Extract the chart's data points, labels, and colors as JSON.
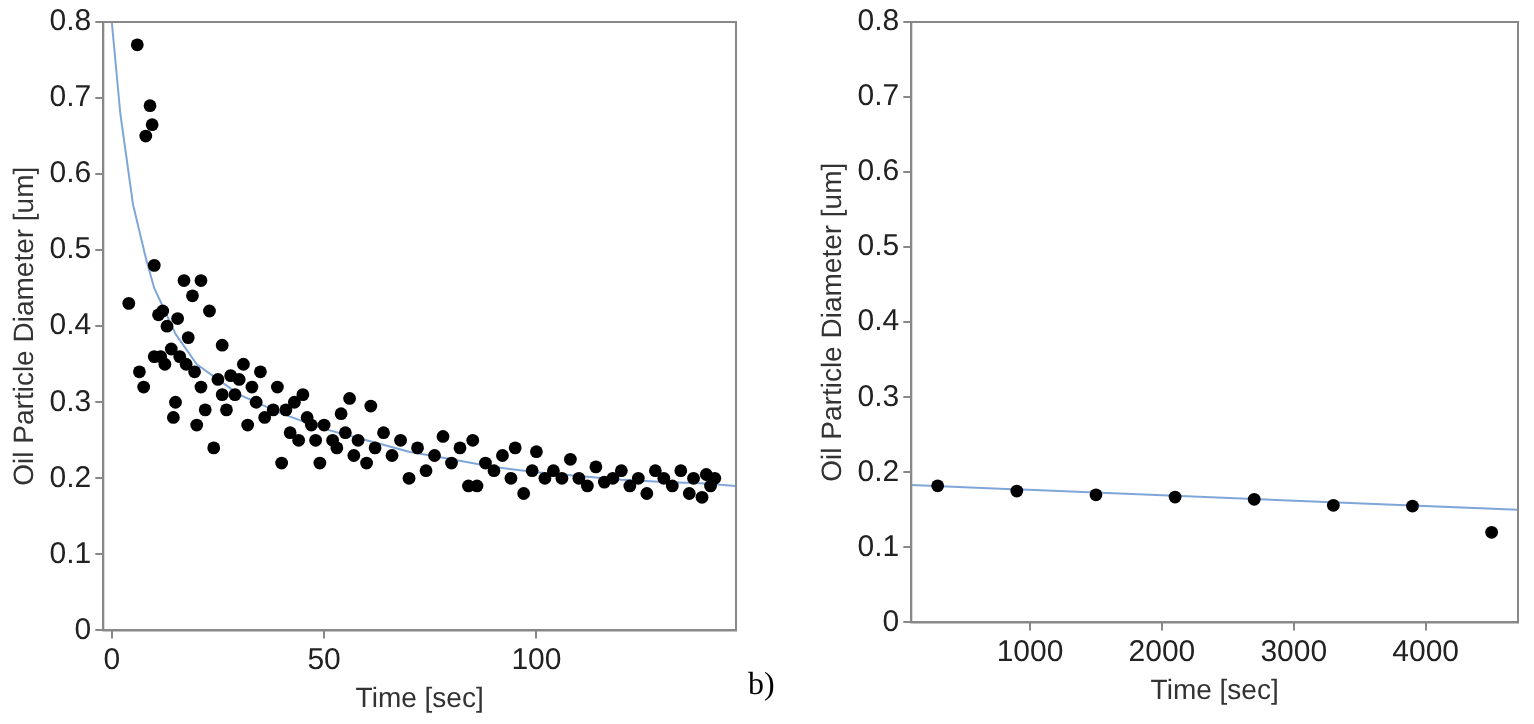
{
  "chart_data": [
    {
      "type": "scatter",
      "xlabel": "Time [sec]",
      "ylabel": "Oil Particle Diameter [um]",
      "xlim": [
        -2,
        147
      ],
      "xticks": [
        0,
        50,
        100
      ],
      "ylim": [
        0,
        0.8
      ],
      "yticks": [
        0,
        0.1,
        0.2,
        0.3,
        0.4,
        0.5,
        0.6,
        0.7,
        0.8
      ],
      "grid": false,
      "legend": false,
      "series": [
        {
          "marker": "circle",
          "color": "#000000",
          "x": [
            4,
            6,
            6.5,
            7.5,
            8,
            9,
            9.5,
            10,
            10,
            11,
            11.5,
            12,
            12.5,
            13,
            14,
            14.5,
            15,
            15.5,
            16,
            17,
            17.5,
            18,
            19,
            19.5,
            20,
            21,
            21,
            22,
            23,
            24,
            25,
            26,
            26,
            27,
            28,
            29,
            30,
            31,
            32,
            33,
            34,
            35,
            36,
            38,
            39,
            40,
            41,
            42,
            43,
            44,
            45,
            46,
            47,
            48,
            49,
            50,
            52,
            53,
            54,
            55,
            56,
            57,
            58,
            60,
            61,
            62,
            64,
            66,
            68,
            70,
            72,
            74,
            76,
            78,
            80,
            82,
            84,
            85,
            86,
            88,
            90,
            92,
            94,
            95,
            97,
            99,
            100,
            102,
            104,
            106,
            108,
            110,
            112,
            114,
            116,
            118,
            120,
            122,
            124,
            126,
            128,
            130,
            132,
            134,
            136,
            137,
            139,
            140,
            141,
            142
          ],
          "values": [
            0.43,
            0.77,
            0.34,
            0.32,
            0.65,
            0.69,
            0.665,
            0.48,
            0.36,
            0.415,
            0.36,
            0.42,
            0.35,
            0.4,
            0.37,
            0.28,
            0.3,
            0.41,
            0.36,
            0.46,
            0.35,
            0.385,
            0.44,
            0.34,
            0.27,
            0.46,
            0.32,
            0.29,
            0.42,
            0.24,
            0.33,
            0.375,
            0.31,
            0.29,
            0.335,
            0.31,
            0.33,
            0.35,
            0.27,
            0.32,
            0.3,
            0.34,
            0.28,
            0.29,
            0.32,
            0.22,
            0.29,
            0.26,
            0.3,
            0.25,
            0.31,
            0.28,
            0.27,
            0.25,
            0.22,
            0.27,
            0.25,
            0.24,
            0.285,
            0.26,
            0.305,
            0.23,
            0.25,
            0.22,
            0.295,
            0.24,
            0.26,
            0.23,
            0.25,
            0.2,
            0.24,
            0.21,
            0.23,
            0.255,
            0.22,
            0.24,
            0.19,
            0.25,
            0.19,
            0.22,
            0.21,
            0.23,
            0.2,
            0.24,
            0.18,
            0.21,
            0.235,
            0.2,
            0.21,
            0.2,
            0.225,
            0.2,
            0.19,
            0.215,
            0.195,
            0.2,
            0.21,
            0.19,
            0.2,
            0.18,
            0.21,
            0.2,
            0.19,
            0.21,
            0.18,
            0.2,
            0.175,
            0.205,
            0.19,
            0.2
          ]
        },
        {
          "type": "line",
          "marker": "none",
          "line_style": "solid",
          "color": "#7ea6d8",
          "x": [
            0,
            2,
            5,
            8,
            10,
            15,
            20,
            30,
            40,
            50,
            60,
            70,
            80,
            90,
            100,
            110,
            120,
            130,
            140,
            147
          ],
          "values": [
            0.8,
            0.68,
            0.56,
            0.49,
            0.45,
            0.39,
            0.35,
            0.31,
            0.285,
            0.265,
            0.25,
            0.235,
            0.225,
            0.215,
            0.208,
            0.203,
            0.198,
            0.195,
            0.193,
            0.19
          ]
        }
      ]
    },
    {
      "type": "scatter",
      "xlabel": "Time [sec]",
      "ylabel": "Oil Particle Diameter [um]",
      "xlim": [
        100,
        4700
      ],
      "xticks": [
        1000,
        2000,
        3000,
        4000
      ],
      "ylim": [
        0,
        0.8
      ],
      "yticks": [
        0,
        0.1,
        0.2,
        0.3,
        0.4,
        0.5,
        0.6,
        0.7,
        0.8
      ],
      "grid": false,
      "legend": false,
      "annotations": [
        "b)"
      ],
      "series": [
        {
          "marker": "circle",
          "color": "#000000",
          "x": [
            300,
            900,
            1500,
            2100,
            2700,
            3300,
            3900,
            4500
          ],
          "values": [
            0.182,
            0.175,
            0.17,
            0.167,
            0.164,
            0.156,
            0.155,
            0.12
          ]
        },
        {
          "type": "line",
          "marker": "none",
          "line_style": "solid",
          "color": "#7ea6d8",
          "x": [
            100,
            4700
          ],
          "values": [
            0.183,
            0.15
          ]
        }
      ]
    }
  ]
}
